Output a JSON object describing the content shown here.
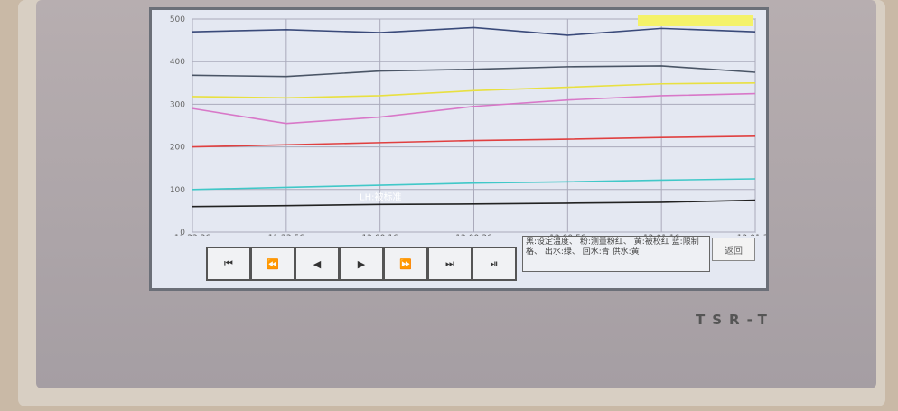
{
  "chart_data": {
    "type": "line",
    "x": [
      "11 23:36",
      "11 23:56",
      "12:00:16",
      "12:00:36",
      "12:00:56",
      "12:01:16",
      "12:01:36"
    ],
    "yticks": [
      0,
      100,
      200,
      300,
      400,
      500
    ],
    "ylim": [
      0,
      500
    ],
    "grid": true,
    "series": [
      {
        "color": "#3a4a7a",
        "values": [
          470,
          475,
          468,
          480,
          462,
          478,
          470
        ]
      },
      {
        "color": "#4a5566",
        "values": [
          368,
          365,
          378,
          382,
          388,
          390,
          375
        ]
      },
      {
        "color": "#e8e040",
        "values": [
          318,
          315,
          320,
          332,
          340,
          348,
          350
        ]
      },
      {
        "color": "#d878c8",
        "values": [
          290,
          255,
          270,
          295,
          310,
          320,
          325
        ]
      },
      {
        "color": "#e04040",
        "values": [
          200,
          205,
          210,
          215,
          218,
          222,
          225
        ]
      },
      {
        "color": "#40c8c8",
        "values": [
          100,
          105,
          110,
          115,
          118,
          122,
          125
        ]
      },
      {
        "color": "#222222",
        "values": [
          60,
          62,
          65,
          66,
          68,
          70,
          75
        ]
      }
    ],
    "annotation": "LH:被标准"
  },
  "buttons": [
    "⏮",
    "⏪",
    "◀",
    "▶",
    "⏩",
    "⏭",
    "⏯"
  ],
  "legend": "黑:设定温度、 粉:测量粉红、 黄:被校红 蓝:限制格、 出水:绿、 回水:青 供水:黄",
  "back_label": "返回",
  "brand": "TSR-T"
}
